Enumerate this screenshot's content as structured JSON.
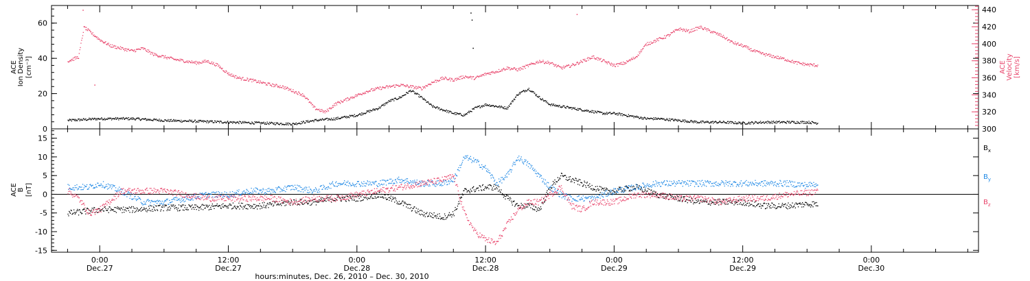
{
  "chart_data": [
    {
      "type": "scatter",
      "panel": "ace-plasma",
      "ylabel": [
        "ACE",
        "Ion Density",
        "[cm⁻³]"
      ],
      "ylabel_right": [
        "ACE",
        "Velocity",
        "[km/s]"
      ],
      "ylim": [
        0,
        70
      ],
      "yticks": [
        "0",
        "20",
        "40",
        "60"
      ],
      "ylim_right": [
        300,
        445
      ],
      "yticks_right": [
        "300",
        "320",
        "340",
        "360",
        "380",
        "400",
        "420",
        "440"
      ],
      "grid": false,
      "series": [
        {
          "axis": "left",
          "color": "#000000",
          "points": [
            [
              -3,
              5
            ],
            [
              0,
              6
            ],
            [
              3,
              6
            ],
            [
              6,
              5
            ],
            [
              9,
              4.5
            ],
            [
              12,
              4
            ],
            [
              15,
              3.5
            ],
            [
              18,
              3
            ],
            [
              19,
              4
            ],
            [
              20,
              5
            ],
            [
              22,
              6
            ],
            [
              24,
              8
            ],
            [
              25,
              10
            ],
            [
              26,
              12
            ],
            [
              27,
              16
            ],
            [
              28,
              18
            ],
            [
              29,
              22
            ],
            [
              30,
              18
            ],
            [
              31,
              13
            ],
            [
              32,
              11
            ],
            [
              33,
              9
            ],
            [
              34,
              8
            ],
            [
              35,
              12
            ],
            [
              36,
              14
            ],
            [
              37,
              13
            ],
            [
              38,
              12
            ],
            [
              39,
              20
            ],
            [
              40,
              23
            ],
            [
              41,
              18
            ],
            [
              42,
              14
            ],
            [
              43,
              13
            ],
            [
              44,
              12
            ],
            [
              45,
              11
            ],
            [
              46,
              10
            ],
            [
              47,
              9
            ],
            [
              48,
              9
            ],
            [
              49,
              8
            ],
            [
              50,
              7
            ],
            [
              51,
              6
            ],
            [
              52,
              6
            ],
            [
              54,
              5
            ],
            [
              56,
              4
            ],
            [
              58,
              4
            ],
            [
              60,
              3.5
            ],
            [
              62,
              4
            ],
            [
              64,
              4
            ],
            [
              66,
              4
            ],
            [
              67,
              3.5
            ]
          ],
          "spikes": [
            [
              34.6,
              66
            ],
            [
              34.7,
              62
            ],
            [
              34.8,
              46
            ]
          ]
        },
        {
          "axis": "right",
          "color": "#e8436a",
          "points": [
            [
              -3,
              380
            ],
            [
              -2,
              385
            ],
            [
              -1.5,
              420
            ],
            [
              -1,
              415
            ],
            [
              0,
              405
            ],
            [
              1,
              398
            ],
            [
              2,
              395
            ],
            [
              3,
              392
            ],
            [
              4,
              395
            ],
            [
              5,
              388
            ],
            [
              6,
              385
            ],
            [
              7,
              382
            ],
            [
              8,
              380
            ],
            [
              9,
              378
            ],
            [
              10,
              380
            ],
            [
              11,
              375
            ],
            [
              12,
              365
            ],
            [
              13,
              360
            ],
            [
              14,
              358
            ],
            [
              15,
              355
            ],
            [
              16,
              352
            ],
            [
              17,
              350
            ],
            [
              18,
              345
            ],
            [
              19,
              340
            ],
            [
              20,
              325
            ],
            [
              21,
              320
            ],
            [
              22,
              330
            ],
            [
              23,
              335
            ],
            [
              24,
              340
            ],
            [
              25,
              345
            ],
            [
              26,
              348
            ],
            [
              27,
              350
            ],
            [
              28,
              352
            ],
            [
              29,
              350
            ],
            [
              30,
              348
            ],
            [
              31,
              355
            ],
            [
              32,
              360
            ],
            [
              33,
              358
            ],
            [
              34,
              362
            ],
            [
              35,
              360
            ],
            [
              36,
              365
            ],
            [
              37,
              368
            ],
            [
              38,
              372
            ],
            [
              39,
              370
            ],
            [
              40,
              375
            ],
            [
              41,
              380
            ],
            [
              42,
              378
            ],
            [
              43,
              372
            ],
            [
              44,
              375
            ],
            [
              45,
              380
            ],
            [
              46,
              385
            ],
            [
              47,
              380
            ],
            [
              48,
              375
            ],
            [
              49,
              378
            ],
            [
              50,
              385
            ],
            [
              51,
              400
            ],
            [
              52,
              405
            ],
            [
              53,
              410
            ],
            [
              54,
              418
            ],
            [
              55,
              415
            ],
            [
              56,
              420
            ],
            [
              57,
              415
            ],
            [
              58,
              410
            ],
            [
              59,
              402
            ],
            [
              60,
              398
            ],
            [
              61,
              392
            ],
            [
              62,
              388
            ],
            [
              63,
              385
            ],
            [
              64,
              382
            ],
            [
              65,
              378
            ],
            [
              66,
              376
            ],
            [
              67,
              375
            ]
          ],
          "spikes": [
            [
              -1.6,
              440
            ],
            [
              -0.5,
              352
            ],
            [
              44.5,
              435
            ]
          ]
        }
      ]
    },
    {
      "type": "scatter",
      "panel": "ace-mag",
      "ylabel": [
        "ACE",
        "B",
        "[nT]"
      ],
      "ylim": [
        -15.5,
        17.5
      ],
      "yticks": [
        "-15",
        "-10",
        "-5",
        "0",
        "5",
        "10",
        "15"
      ],
      "zero_line": true,
      "grid": false,
      "legend_position": "right",
      "series": [
        {
          "name": "B",
          "subscript": "x",
          "color": "#000000",
          "points": [
            [
              -3,
              -5
            ],
            [
              0,
              -4
            ],
            [
              3,
              -4
            ],
            [
              6,
              -3.5
            ],
            [
              9,
              -3.5
            ],
            [
              12,
              -3
            ],
            [
              15,
              -3
            ],
            [
              18,
              -2
            ],
            [
              20,
              -2
            ],
            [
              22,
              -1
            ],
            [
              24,
              -1
            ],
            [
              26,
              0
            ],
            [
              28,
              -2
            ],
            [
              30,
              -5
            ],
            [
              32,
              -6
            ],
            [
              33,
              -5
            ],
            [
              34,
              1
            ],
            [
              36,
              2
            ],
            [
              37,
              2
            ],
            [
              38,
              -1
            ],
            [
              39,
              -3
            ],
            [
              40,
              -3
            ],
            [
              41,
              -4
            ],
            [
              42,
              2
            ],
            [
              43,
              5
            ],
            [
              44,
              4
            ],
            [
              45,
              3
            ],
            [
              46,
              2
            ],
            [
              47,
              1
            ],
            [
              48,
              1
            ],
            [
              50,
              2
            ],
            [
              52,
              0
            ],
            [
              54,
              -1
            ],
            [
              56,
              -2
            ],
            [
              58,
              -2
            ],
            [
              60,
              -2
            ],
            [
              62,
              -3
            ],
            [
              64,
              -3
            ],
            [
              66,
              -2.5
            ],
            [
              67,
              -2.5
            ]
          ]
        },
        {
          "name": "B",
          "subscript": "y",
          "color": "#1e88e5",
          "points": [
            [
              -3,
              2
            ],
            [
              -1,
              2
            ],
            [
              0,
              3
            ],
            [
              2,
              1
            ],
            [
              4,
              -2
            ],
            [
              6,
              -2
            ],
            [
              8,
              -1
            ],
            [
              10,
              0
            ],
            [
              12,
              0
            ],
            [
              14,
              1
            ],
            [
              16,
              1
            ],
            [
              18,
              2
            ],
            [
              20,
              1
            ],
            [
              22,
              3
            ],
            [
              24,
              3
            ],
            [
              26,
              3
            ],
            [
              28,
              4
            ],
            [
              30,
              3
            ],
            [
              32,
              3
            ],
            [
              33,
              4
            ],
            [
              34,
              10
            ],
            [
              35,
              9
            ],
            [
              36,
              7
            ],
            [
              37,
              3
            ],
            [
              38,
              5
            ],
            [
              39,
              10
            ],
            [
              40,
              8
            ],
            [
              41,
              5
            ],
            [
              42,
              2
            ],
            [
              43,
              0
            ],
            [
              44,
              -1
            ],
            [
              46,
              -1
            ],
            [
              48,
              1
            ],
            [
              50,
              2
            ],
            [
              52,
              3
            ],
            [
              54,
              3
            ],
            [
              56,
              3
            ],
            [
              58,
              3
            ],
            [
              60,
              3
            ],
            [
              62,
              3
            ],
            [
              64,
              3
            ],
            [
              66,
              2.5
            ],
            [
              67,
              3
            ]
          ]
        },
        {
          "name": "B",
          "subscript": "z",
          "color": "#e8436a",
          "points": [
            [
              -3,
              1
            ],
            [
              -2,
              -1
            ],
            [
              -1,
              -5
            ],
            [
              0,
              -4
            ],
            [
              2,
              1
            ],
            [
              4,
              1
            ],
            [
              6,
              1
            ],
            [
              8,
              0
            ],
            [
              10,
              -1
            ],
            [
              12,
              -1
            ],
            [
              14,
              -1
            ],
            [
              16,
              -1
            ],
            [
              18,
              -2
            ],
            [
              20,
              -1
            ],
            [
              22,
              -1
            ],
            [
              24,
              0
            ],
            [
              26,
              1
            ],
            [
              28,
              2
            ],
            [
              30,
              3
            ],
            [
              32,
              4
            ],
            [
              33,
              5
            ],
            [
              34,
              -5
            ],
            [
              35,
              -10
            ],
            [
              36,
              -12
            ],
            [
              37,
              -13
            ],
            [
              38,
              -8
            ],
            [
              39,
              -4
            ],
            [
              40,
              -2
            ],
            [
              41,
              -2
            ],
            [
              42,
              0
            ],
            [
              43,
              2
            ],
            [
              44,
              -3
            ],
            [
              45,
              -4
            ],
            [
              46,
              -2
            ],
            [
              48,
              -2
            ],
            [
              50,
              0
            ],
            [
              52,
              0
            ],
            [
              54,
              -1
            ],
            [
              56,
              -1
            ],
            [
              58,
              -2
            ],
            [
              60,
              -1
            ],
            [
              62,
              -1
            ],
            [
              64,
              0
            ],
            [
              66,
              0.5
            ],
            [
              67,
              1
            ]
          ]
        }
      ]
    }
  ],
  "time_axis": {
    "x_range_hours": [
      -4.5,
      82
    ],
    "xticks": [
      {
        "hour": 0,
        "time": "0:00",
        "date": "Dec.27"
      },
      {
        "hour": 12,
        "time": "12:00",
        "date": "Dec.27"
      },
      {
        "hour": 24,
        "time": "0:00",
        "date": "Dec.28"
      },
      {
        "hour": 36,
        "time": "12:00",
        "date": "Dec.28"
      },
      {
        "hour": 48,
        "time": "0:00",
        "date": "Dec.29"
      },
      {
        "hour": 60,
        "time": "12:00",
        "date": "Dec.29"
      },
      {
        "hour": 72,
        "time": "0:00",
        "date": "Dec.30"
      }
    ],
    "xlabel": "hours:minutes, Dec. 26, 2010 – Dec. 30, 2010"
  },
  "colors": {
    "density": "#000000",
    "velocity": "#e8436a",
    "bx": "#000000",
    "by": "#1e88e5",
    "bz": "#e8436a",
    "frame": "#000000"
  }
}
